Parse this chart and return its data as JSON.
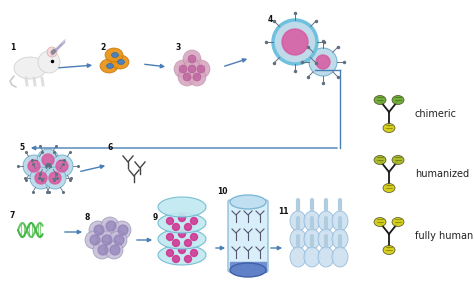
{
  "background_color": "#ffffff",
  "arrow_color": "#4a7fb5",
  "legend_items": [
    {
      "label": "chimeric",
      "color_top": "#6aaa30",
      "color_bottom": "#d4cc10"
    },
    {
      "label": "humanized",
      "color_top": "#a8b820",
      "color_bottom": "#d4cc10"
    },
    {
      "label": "fully human",
      "color_top": "#d0cc10",
      "color_bottom": "#d4cc10"
    }
  ],
  "figsize": [
    4.74,
    2.9
  ],
  "dpi": 100
}
